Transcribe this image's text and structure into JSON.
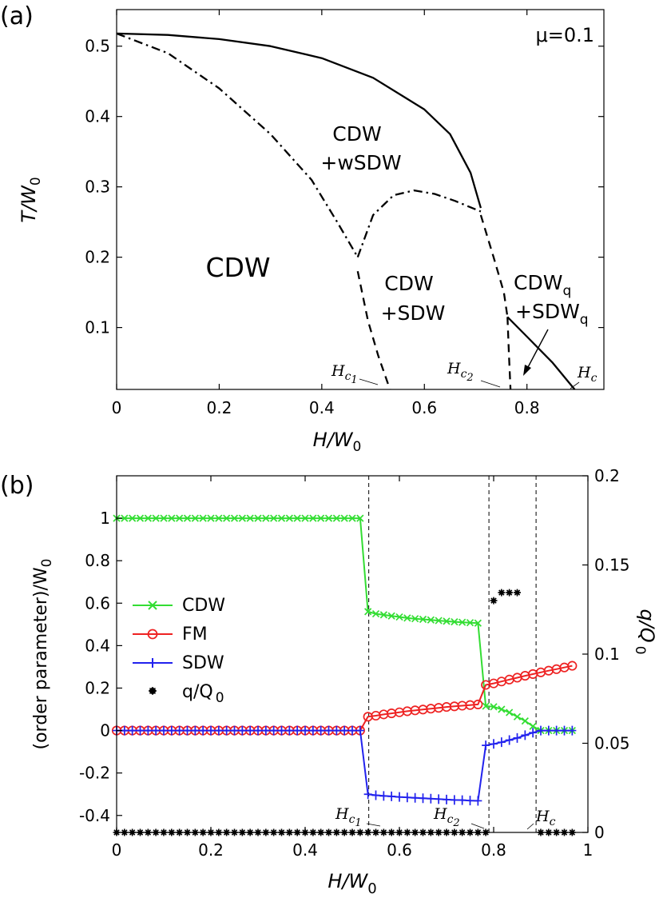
{
  "chart_data": [
    {
      "type": "line",
      "panel_label": "(a)",
      "annotation": "μ=0.1",
      "xlabel": "H/W",
      "xlabel_sub": "0",
      "ylabel": "T/W",
      "ylabel_sub": "0",
      "xlim": [
        0,
        0.95
      ],
      "ylim": [
        0.012,
        0.552
      ],
      "xticks": [
        0,
        0.2,
        0.4,
        0.6,
        0.8
      ],
      "xtick_labels": [
        "0",
        "0.2",
        "0.4",
        "0.6",
        "0.8"
      ],
      "yticks": [
        0.1,
        0.2,
        0.3,
        0.4,
        0.5
      ],
      "ytick_labels": [
        "0.1",
        "0.2",
        "0.3",
        "0.4",
        "0.5"
      ],
      "grid": false,
      "lines": [
        {
          "style": "solid",
          "x": [
            0,
            0.1,
            0.2,
            0.3,
            0.4,
            0.5,
            0.6,
            0.65,
            0.69,
            0.71
          ],
          "y": [
            0.518,
            0.516,
            0.51,
            0.5,
            0.483,
            0.455,
            0.41,
            0.375,
            0.32,
            0.27
          ]
        },
        {
          "style": "solid",
          "x": [
            0.762,
            0.8,
            0.85,
            0.893
          ],
          "y": [
            0.115,
            0.087,
            0.05,
            0.012
          ]
        },
        {
          "style": "dashdot",
          "x": [
            0,
            0.1,
            0.2,
            0.3,
            0.38,
            0.43,
            0.47
          ],
          "y": [
            0.518,
            0.49,
            0.44,
            0.375,
            0.31,
            0.25,
            0.2
          ]
        },
        {
          "style": "dashdot",
          "x": [
            0.47,
            0.5,
            0.54,
            0.58,
            0.62,
            0.66,
            0.71
          ],
          "y": [
            0.2,
            0.26,
            0.288,
            0.295,
            0.29,
            0.28,
            0.265
          ]
        },
        {
          "style": "dashed",
          "x": [
            0.47,
            0.49,
            0.51,
            0.533
          ],
          "y": [
            0.18,
            0.11,
            0.06,
            0.012
          ]
        },
        {
          "style": "dashed",
          "x": [
            0.71,
            0.735,
            0.755,
            0.762
          ],
          "y": [
            0.26,
            0.2,
            0.15,
            0.115
          ]
        },
        {
          "style": "dashed",
          "x": [
            0.762,
            0.765,
            0.768
          ],
          "y": [
            0.115,
            0.06,
            0.012
          ]
        }
      ],
      "regions": [
        {
          "lines": [
            "CDW",
            "+wSDW"
          ]
        },
        {
          "lines": [
            "CDW"
          ]
        },
        {
          "lines": [
            "CDW",
            "+SDW"
          ]
        },
        {
          "lines": [
            "CDW",
            "+SDW"
          ],
          "sub": "q"
        }
      ],
      "critical_labels": [
        {
          "base": "H",
          "sub": "c",
          "subsub": "1"
        },
        {
          "base": "H",
          "sub": "c",
          "subsub": "2"
        },
        {
          "base": "H",
          "sub": "c",
          "subsub": ""
        }
      ]
    },
    {
      "type": "line",
      "panel_label": "(b)",
      "xlabel": "H/W",
      "xlabel_sub": "0",
      "ylabel": "(order parameter)/W",
      "ylabel_sub": "0",
      "y2label": "q/Q",
      "y2label_sub": "0",
      "xlim": [
        0,
        1
      ],
      "ylim": [
        -0.48,
        1.2
      ],
      "y2lim": [
        0,
        0.2
      ],
      "xticks": [
        0,
        0.2,
        0.4,
        0.6,
        0.8,
        1
      ],
      "xtick_labels": [
        "0",
        "0.2",
        "0.4",
        "0.6",
        "0.8",
        "1"
      ],
      "yticks": [
        -0.4,
        -0.2,
        0,
        0.2,
        0.4,
        0.6,
        0.8,
        1
      ],
      "ytick_labels": [
        "-0.4",
        "-0.2",
        "0",
        "0.2",
        "0.4",
        "0.6",
        "0.8",
        "1"
      ],
      "y2ticks": [
        0,
        0.05,
        0.1,
        0.15,
        0.2
      ],
      "y2tick_labels": [
        "0",
        "0.05",
        "0.1",
        "0.15",
        "0.2"
      ],
      "vlines": [
        0.535,
        0.79,
        0.89
      ],
      "legend_position": "center-left",
      "grid": false,
      "series": [
        {
          "name": "CDW",
          "color": "#33dd33",
          "marker": "x",
          "x": [
            0,
            0.0167,
            0.0333,
            0.05,
            0.0667,
            0.0833,
            0.1,
            0.1167,
            0.1333,
            0.15,
            0.1667,
            0.1833,
            0.2,
            0.2167,
            0.2333,
            0.25,
            0.2667,
            0.2833,
            0.3,
            0.3167,
            0.3333,
            0.35,
            0.3667,
            0.3833,
            0.4,
            0.4167,
            0.4333,
            0.45,
            0.4667,
            0.4833,
            0.5,
            0.5167,
            0.5333,
            0.55,
            0.5667,
            0.5833,
            0.6,
            0.6167,
            0.6333,
            0.65,
            0.6667,
            0.6833,
            0.7,
            0.7167,
            0.7333,
            0.75,
            0.7667,
            0.7833,
            0.8,
            0.8167,
            0.8333,
            0.85,
            0.8667,
            0.8833,
            0.9,
            0.9167,
            0.9333,
            0.95,
            0.9667
          ],
          "y": [
            1,
            1,
            1,
            1,
            1,
            1,
            1,
            1,
            1,
            1,
            1,
            1,
            1,
            1,
            1,
            1,
            1,
            1,
            1,
            1,
            1,
            1,
            1,
            1,
            1,
            1,
            1,
            1,
            1,
            1,
            1,
            1,
            0.56,
            0.55,
            0.545,
            0.54,
            0.535,
            0.53,
            0.527,
            0.524,
            0.521,
            0.518,
            0.515,
            0.512,
            0.51,
            0.508,
            0.506,
            0.115,
            0.112,
            0.1,
            0.085,
            0.065,
            0.045,
            0.02,
            0,
            0,
            0,
            0,
            0
          ]
        },
        {
          "name": "FM",
          "color": "#ee2222",
          "marker": "o",
          "x": [
            0,
            0.0167,
            0.0333,
            0.05,
            0.0667,
            0.0833,
            0.1,
            0.1167,
            0.1333,
            0.15,
            0.1667,
            0.1833,
            0.2,
            0.2167,
            0.2333,
            0.25,
            0.2667,
            0.2833,
            0.3,
            0.3167,
            0.3333,
            0.35,
            0.3667,
            0.3833,
            0.4,
            0.4167,
            0.4333,
            0.45,
            0.4667,
            0.4833,
            0.5,
            0.5167,
            0.5333,
            0.55,
            0.5667,
            0.5833,
            0.6,
            0.6167,
            0.6333,
            0.65,
            0.6667,
            0.6833,
            0.7,
            0.7167,
            0.7333,
            0.75,
            0.7667,
            0.7833,
            0.8,
            0.8167,
            0.8333,
            0.85,
            0.8667,
            0.8833,
            0.9,
            0.9167,
            0.9333,
            0.95,
            0.9667
          ],
          "y": [
            0,
            0,
            0,
            0,
            0,
            0,
            0,
            0,
            0,
            0,
            0,
            0,
            0,
            0,
            0,
            0,
            0,
            0,
            0,
            0,
            0,
            0,
            0,
            0,
            0,
            0,
            0,
            0,
            0,
            0,
            0,
            0,
            0.065,
            0.07,
            0.076,
            0.081,
            0.086,
            0.091,
            0.095,
            0.099,
            0.103,
            0.107,
            0.111,
            0.114,
            0.117,
            0.12,
            0.123,
            0.215,
            0.222,
            0.231,
            0.24,
            0.249,
            0.258,
            0.266,
            0.274,
            0.282,
            0.289,
            0.297,
            0.305
          ]
        },
        {
          "name": "SDW",
          "color": "#2222ee",
          "marker": "+",
          "x": [
            0,
            0.0167,
            0.0333,
            0.05,
            0.0667,
            0.0833,
            0.1,
            0.1167,
            0.1333,
            0.15,
            0.1667,
            0.1833,
            0.2,
            0.2167,
            0.2333,
            0.25,
            0.2667,
            0.2833,
            0.3,
            0.3167,
            0.3333,
            0.35,
            0.3667,
            0.3833,
            0.4,
            0.4167,
            0.4333,
            0.45,
            0.4667,
            0.4833,
            0.5,
            0.5167,
            0.5333,
            0.55,
            0.5667,
            0.5833,
            0.6,
            0.6167,
            0.6333,
            0.65,
            0.6667,
            0.6833,
            0.7,
            0.7167,
            0.7333,
            0.75,
            0.7667,
            0.7833,
            0.8,
            0.8167,
            0.8333,
            0.85,
            0.8667,
            0.8833,
            0.9,
            0.9167,
            0.9333,
            0.95,
            0.9667
          ],
          "y": [
            0,
            0,
            0,
            0,
            0,
            0,
            0,
            0,
            0,
            0,
            0,
            0,
            0,
            0,
            0,
            0,
            0,
            0,
            0,
            0,
            0,
            0,
            0,
            0,
            0,
            0,
            0,
            0,
            0,
            0,
            0,
            0,
            -0.3,
            -0.305,
            -0.308,
            -0.31,
            -0.313,
            -0.315,
            -0.317,
            -0.319,
            -0.321,
            -0.323,
            -0.325,
            -0.327,
            -0.328,
            -0.33,
            -0.331,
            -0.07,
            -0.063,
            -0.055,
            -0.045,
            -0.035,
            -0.022,
            -0.01,
            0,
            0,
            0,
            0,
            0
          ]
        },
        {
          "name": "q/Q",
          "name_sub": "0",
          "color": "#000000",
          "marker": "*",
          "axis": "right",
          "x": [
            0,
            0.0167,
            0.0333,
            0.05,
            0.0667,
            0.0833,
            0.1,
            0.1167,
            0.1333,
            0.15,
            0.1667,
            0.1833,
            0.2,
            0.2167,
            0.2333,
            0.25,
            0.2667,
            0.2833,
            0.3,
            0.3167,
            0.3333,
            0.35,
            0.3667,
            0.3833,
            0.4,
            0.4167,
            0.4333,
            0.45,
            0.4667,
            0.4833,
            0.5,
            0.5167,
            0.5333,
            0.55,
            0.5667,
            0.5833,
            0.6,
            0.6167,
            0.6333,
            0.65,
            0.6667,
            0.6833,
            0.7,
            0.7167,
            0.7333,
            0.75,
            0.7667,
            0.7833,
            0.8,
            0.8167,
            0.8333,
            0.85,
            0.8667,
            0.8833,
            0.9,
            0.9167,
            0.9333,
            0.95,
            0.9667
          ],
          "y": [
            0,
            0,
            0,
            0,
            0,
            0,
            0,
            0,
            0,
            0,
            0,
            0,
            0,
            0,
            0,
            0,
            0,
            0,
            0,
            0,
            0,
            0,
            0,
            0,
            0,
            0,
            0,
            0,
            0,
            0,
            0,
            0,
            0,
            0,
            0,
            0,
            0,
            0,
            0,
            0,
            0,
            0,
            0,
            0,
            0,
            0,
            0,
            0,
            0.13,
            0.1345,
            0.1345,
            0.1345,
            null,
            null,
            0,
            0,
            0,
            0,
            0
          ]
        }
      ],
      "critical_labels": [
        {
          "base": "H",
          "sub": "c",
          "subsub": "1"
        },
        {
          "base": "H",
          "sub": "c",
          "subsub": "2"
        },
        {
          "base": "H",
          "sub": "c",
          "subsub": ""
        }
      ]
    }
  ]
}
